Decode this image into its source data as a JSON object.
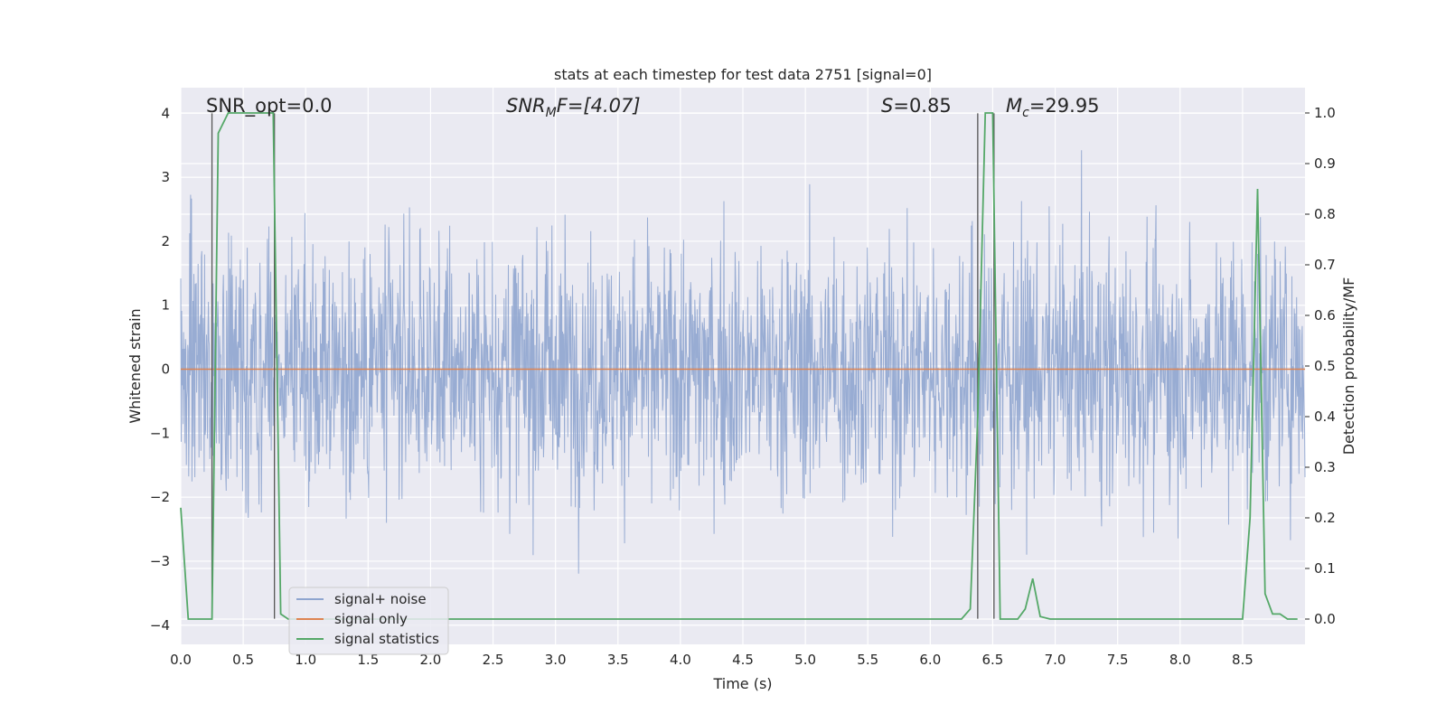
{
  "chart_data": {
    "type": "line",
    "title": "stats at each timestep for test data 2751 [signal=0]",
    "xlabel": "Time (s)",
    "ylabel": "Whitened strain",
    "y2label": "Detection probability/MF",
    "xlim": [
      0.0,
      9.0
    ],
    "ylim": [
      -4.3,
      4.4
    ],
    "y2lim": [
      -0.05,
      1.05
    ],
    "xticks": [
      "0.0",
      "0.5",
      "1.0",
      "1.5",
      "2.0",
      "2.5",
      "3.0",
      "3.5",
      "4.0",
      "4.5",
      "5.0",
      "5.5",
      "6.0",
      "6.5",
      "7.0",
      "7.5",
      "8.0",
      "8.5"
    ],
    "yticks": [
      "4",
      "3",
      "2",
      "1",
      "0",
      "−1",
      "−2",
      "−3",
      "−4"
    ],
    "y2ticks": [
      "1.0",
      "0.9",
      "0.8",
      "0.7",
      "0.6",
      "0.5",
      "0.4",
      "0.3",
      "0.2",
      "0.1",
      "0.0"
    ],
    "annotations": {
      "snr_opt": "SNR_opt=0.0",
      "snr_mf_base": "SNR",
      "snr_mf_sub": "M",
      "snr_mf_rest": "F=[4.07]",
      "s_symbol": "S",
      "s_value": "=0.85",
      "mc_symbol": "M",
      "mc_sub": "c",
      "mc_value": "=29.95"
    },
    "legend": {
      "position": "lower-left",
      "entries": [
        "signal+ noise",
        "signal only",
        "signal statistics"
      ]
    },
    "colors": {
      "noise": "#8fa5cf",
      "signal_only": "#dd8452",
      "statistics": "#55a868",
      "vlines": "#555555",
      "background": "#eaeaf2"
    },
    "noise_amplitude_std": 1.0,
    "signal_only_value": 0.0,
    "vertical_lines_x": [
      0.25,
      0.75,
      6.38,
      6.51
    ],
    "series": [
      {
        "name": "signal statistics",
        "axis": "right",
        "x": [
          0.0,
          0.06,
          0.12,
          0.18,
          0.25,
          0.3,
          0.38,
          0.44,
          0.5,
          0.56,
          0.62,
          0.68,
          0.74,
          0.8,
          0.86,
          1.0,
          1.5,
          2.0,
          2.5,
          3.0,
          3.5,
          4.0,
          4.5,
          5.0,
          5.5,
          6.0,
          6.25,
          6.32,
          6.38,
          6.44,
          6.5,
          6.56,
          6.62,
          6.7,
          6.76,
          6.82,
          6.88,
          6.96,
          7.0,
          7.5,
          8.0,
          8.5,
          8.56,
          8.62,
          8.68,
          8.74,
          8.8,
          8.86,
          8.94
        ],
        "values": [
          0.22,
          0.0,
          0.0,
          0.0,
          0.0,
          0.96,
          1.0,
          1.0,
          1.0,
          1.0,
          1.0,
          1.0,
          1.0,
          0.01,
          0.0,
          0.0,
          0.0,
          0.0,
          0.0,
          0.0,
          0.0,
          0.0,
          0.0,
          0.0,
          0.0,
          0.0,
          0.0,
          0.02,
          0.4,
          1.0,
          1.0,
          0.0,
          0.0,
          0.0,
          0.02,
          0.08,
          0.005,
          0.0,
          0.0,
          0.0,
          0.0,
          0.0,
          0.2,
          0.85,
          0.05,
          0.01,
          0.01,
          0.0,
          0.0
        ]
      }
    ]
  }
}
